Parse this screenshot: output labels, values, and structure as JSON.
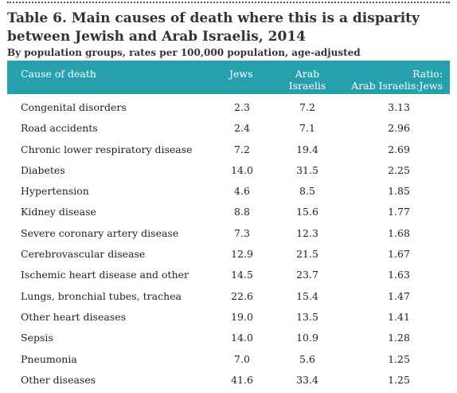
{
  "document": {
    "title": "Table 6.  Main causes of death where this is a disparity between Jewish and Arab Israelis, 2014",
    "subtitle": "By population groups, rates per 100,000 population, age-adjusted"
  },
  "table": {
    "headers": {
      "cause": "Cause of death",
      "jews": "Jews",
      "arab_line1": "Arab",
      "arab_line2": "Israelis",
      "ratio_line1": "Ratio:",
      "ratio_line2": "Arab Israelis:Jews"
    },
    "header_color": "#25a0ac",
    "rows": [
      {
        "cause": "Congenital disorders",
        "jews": "2.3",
        "arab": "7.2",
        "ratio": "3.13"
      },
      {
        "cause": "Road accidents",
        "jews": "2.4",
        "arab": "7.1",
        "ratio": "2.96"
      },
      {
        "cause": "Chronic lower respiratory disease",
        "jews": "7.2",
        "arab": "19.4",
        "ratio": "2.69"
      },
      {
        "cause": "Diabetes",
        "jews": "14.0",
        "arab": "31.5",
        "ratio": "2.25"
      },
      {
        "cause": "Hypertension",
        "jews": "4.6",
        "arab": "8.5",
        "ratio": "1.85"
      },
      {
        "cause": "Kidney disease",
        "jews": "8.8",
        "arab": "15.6",
        "ratio": "1.77"
      },
      {
        "cause": "Severe coronary artery disease",
        "jews": "7.3",
        "arab": "12.3",
        "ratio": "1.68"
      },
      {
        "cause": "Cerebrovascular disease",
        "jews": "12.9",
        "arab": "21.5",
        "ratio": "1.67"
      },
      {
        "cause": "Ischemic heart disease and other",
        "jews": "14.5",
        "arab": "23.7",
        "ratio": "1.63"
      },
      {
        "cause": "Lungs, bronchial tubes, trachea",
        "jews": "22.6",
        "arab": "15.4",
        "ratio": "1.47"
      },
      {
        "cause": "Other heart diseases",
        "jews": "19.0",
        "arab": "13.5",
        "ratio": "1.41"
      },
      {
        "cause": "Sepsis",
        "jews": "14.0",
        "arab": "10.9",
        "ratio": "1.28"
      },
      {
        "cause": "Pneumonia",
        "jews": "7.0",
        "arab": "5.6",
        "ratio": "1.25"
      },
      {
        "cause": "Other diseases",
        "jews": "41.6",
        "arab": "33.4",
        "ratio": "1.25"
      }
    ]
  }
}
